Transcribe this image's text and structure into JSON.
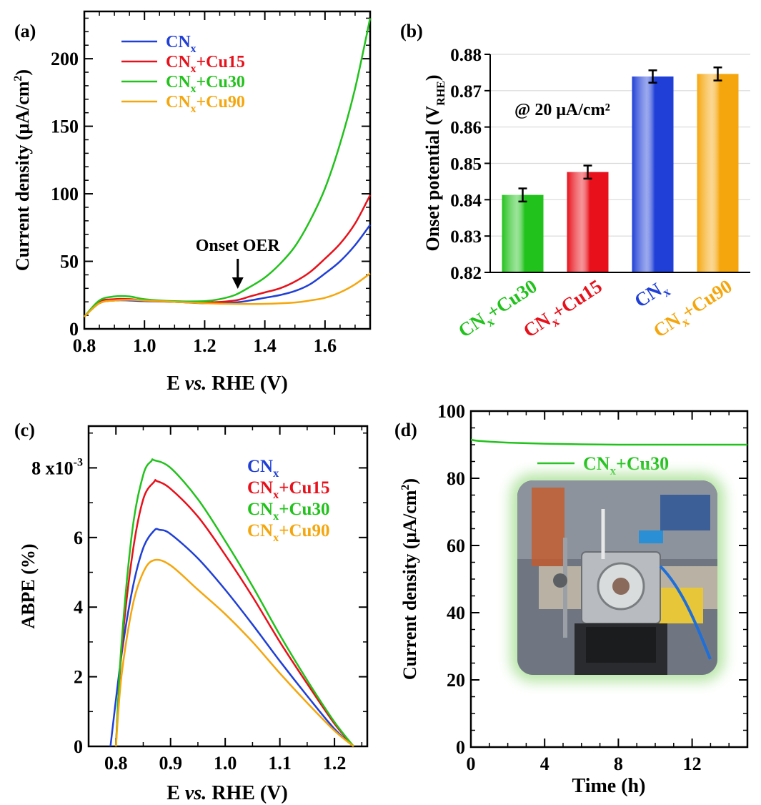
{
  "panels": {
    "a": {
      "label": "(a)"
    },
    "b": {
      "label": "(b)",
      "annotation": "@ 20 μA/cm²"
    },
    "c": {
      "label": "(c)"
    },
    "d": {
      "label": "(d)"
    }
  },
  "chart_data": [
    {
      "id": "a",
      "type": "line",
      "xlabel": "E vs. RHE (V)",
      "ylabel": "Current density (μA/cm²)",
      "xlim": [
        0.8,
        1.75
      ],
      "ylim": [
        0,
        235
      ],
      "xticks": [
        "0.8",
        "1.0",
        "1.2",
        "1.4",
        "1.6"
      ],
      "yticks": [
        "0",
        "50",
        "100",
        "150",
        "200"
      ],
      "annotation": "Onset OER",
      "annotation_x": 1.31,
      "legend_position": "top-left",
      "series": [
        {
          "name": "CNx",
          "color": "#1f3fd6",
          "x": [
            0.8,
            0.85,
            0.9,
            0.95,
            1.0,
            1.1,
            1.2,
            1.3,
            1.35,
            1.4,
            1.45,
            1.5,
            1.55,
            1.6,
            1.65,
            1.7,
            1.75
          ],
          "y": [
            9,
            19,
            21,
            21,
            20.5,
            20,
            19,
            19.5,
            21,
            23,
            25,
            28,
            33,
            41,
            50,
            62,
            77
          ]
        },
        {
          "name": "CNx+Cu15",
          "color": "#e8101a",
          "x": [
            0.8,
            0.85,
            0.9,
            0.95,
            1.0,
            1.1,
            1.2,
            1.3,
            1.35,
            1.4,
            1.45,
            1.5,
            1.55,
            1.6,
            1.65,
            1.7,
            1.75
          ],
          "y": [
            9,
            20,
            22,
            22,
            21,
            20,
            19.5,
            21,
            24,
            27,
            30,
            35,
            42,
            52,
            63,
            78,
            99
          ]
        },
        {
          "name": "CNx+Cu30",
          "color": "#22c21c",
          "x": [
            0.8,
            0.85,
            0.9,
            0.95,
            1.0,
            1.1,
            1.2,
            1.25,
            1.3,
            1.35,
            1.4,
            1.45,
            1.5,
            1.55,
            1.6,
            1.65,
            1.7,
            1.75
          ],
          "y": [
            9,
            21,
            24,
            24,
            22,
            20.5,
            20.5,
            22,
            25,
            31,
            38,
            48,
            61,
            80,
            104,
            137,
            178,
            230
          ]
        },
        {
          "name": "CNx+Cu90",
          "color": "#f5a60c",
          "x": [
            0.8,
            0.85,
            0.9,
            0.95,
            1.0,
            1.1,
            1.2,
            1.3,
            1.4,
            1.5,
            1.55,
            1.6,
            1.65,
            1.7,
            1.75
          ],
          "y": [
            9,
            19,
            21,
            21.5,
            21,
            20,
            19,
            18.5,
            18.5,
            19.5,
            21,
            23,
            27,
            33,
            41
          ]
        }
      ]
    },
    {
      "id": "b",
      "type": "bar",
      "ylabel": "Onset potential (V_RHE)",
      "ylim": [
        0.82,
        0.88
      ],
      "yticks": [
        "0.82",
        "0.83",
        "0.84",
        "0.85",
        "0.86",
        "0.87",
        "0.88"
      ],
      "categories": [
        "CNx+Cu30",
        "CNx+Cu15",
        "CNx",
        "CNx+Cu90"
      ],
      "values": [
        0.8413,
        0.8476,
        0.8739,
        0.8746
      ],
      "errors": [
        0.0018,
        0.0018,
        0.0017,
        0.0018
      ],
      "colors": [
        "#22c21c",
        "#e8101a",
        "#1f3fd6",
        "#f5a60c"
      ],
      "grid": true
    },
    {
      "id": "c",
      "type": "line",
      "xlabel": "E vs. RHE (V)",
      "ylabel": "ABPE (%)",
      "xlim": [
        0.75,
        1.26
      ],
      "ylim": [
        0,
        0.0092
      ],
      "xticks": [
        "0.8",
        "0.9",
        "1.0",
        "1.1",
        "1.2"
      ],
      "yticks": [
        "0",
        "2",
        "4",
        "6",
        "8 x10"
      ],
      "ytick_exponent": "-3",
      "legend_position": "top-right",
      "series": [
        {
          "name": "CNx",
          "color": "#1f3fd6",
          "x": [
            0.79,
            0.81,
            0.83,
            0.85,
            0.87,
            0.88,
            0.9,
            0.95,
            1.0,
            1.05,
            1.1,
            1.15,
            1.2,
            1.235
          ],
          "y": [
            0,
            0.0026,
            0.0045,
            0.0057,
            0.0062,
            0.00622,
            0.0061,
            0.0054,
            0.0045,
            0.0035,
            0.00245,
            0.00145,
            0.0005,
            0
          ]
        },
        {
          "name": "CNx+Cu15",
          "color": "#e8101a",
          "x": [
            0.8,
            0.81,
            0.83,
            0.85,
            0.87,
            0.875,
            0.9,
            0.95,
            1.0,
            1.05,
            1.1,
            1.15,
            1.2,
            1.235
          ],
          "y": [
            0,
            0.0027,
            0.0055,
            0.0071,
            0.0076,
            0.00762,
            0.0074,
            0.0066,
            0.0055,
            0.0043,
            0.003,
            0.0018,
            0.00065,
            0
          ]
        },
        {
          "name": "CNx+Cu30",
          "color": "#22c21c",
          "x": [
            0.8,
            0.81,
            0.83,
            0.85,
            0.865,
            0.87,
            0.9,
            0.95,
            1.0,
            1.05,
            1.1,
            1.15,
            1.2,
            1.235
          ],
          "y": [
            0,
            0.0029,
            0.0062,
            0.0078,
            0.0082,
            0.00822,
            0.008,
            0.0071,
            0.0059,
            0.0046,
            0.0032,
            0.0019,
            0.0007,
            0
          ]
        },
        {
          "name": "CNx+Cu90",
          "color": "#f5a60c",
          "x": [
            0.8,
            0.81,
            0.83,
            0.85,
            0.87,
            0.9,
            0.95,
            1.0,
            1.05,
            1.1,
            1.15,
            1.2,
            1.235
          ],
          "y": [
            0,
            0.002,
            0.004,
            0.005,
            0.00535,
            0.0052,
            0.0045,
            0.0038,
            0.003,
            0.0021,
            0.00125,
            0.00045,
            0
          ]
        }
      ]
    },
    {
      "id": "d",
      "type": "line",
      "xlabel": "Time (h)",
      "ylabel": "Current density (μA/cm²)",
      "xlim": [
        0,
        15
      ],
      "ylim": [
        0,
        100
      ],
      "xticks": [
        "0",
        "4",
        "8",
        "12"
      ],
      "yticks": [
        "0",
        "20",
        "40",
        "60",
        "80",
        "100"
      ],
      "legend_position": "top-right",
      "series": [
        {
          "name": "CNx+Cu30",
          "color": "#22c21c",
          "x": [
            0,
            0.3,
            1,
            2,
            4,
            6,
            8,
            10,
            12,
            14,
            15
          ],
          "y": [
            91.5,
            91.2,
            90.9,
            90.6,
            90.3,
            90.1,
            90.0,
            90.0,
            90.0,
            90.0,
            90.0
          ]
        }
      ]
    }
  ]
}
